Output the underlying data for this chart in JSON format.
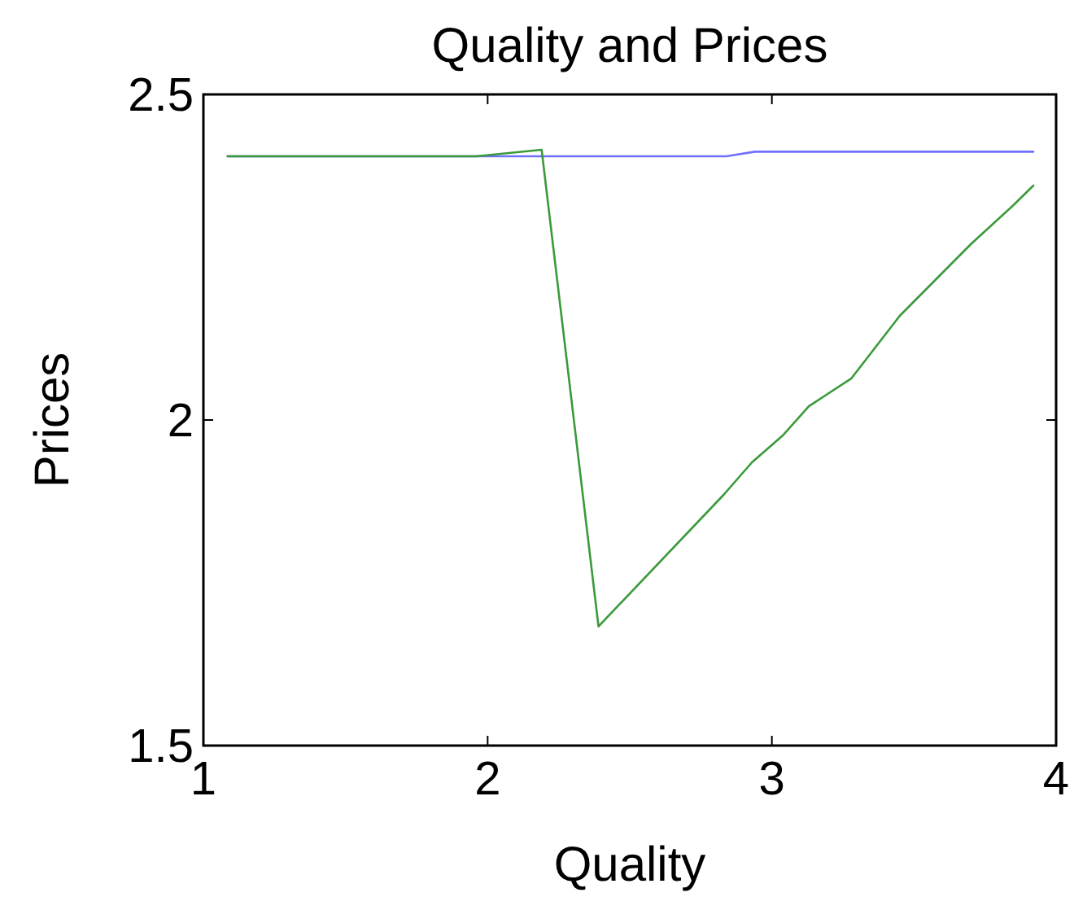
{
  "chart_data": {
    "type": "line",
    "title": "Quality and Prices",
    "xlabel": "Quality",
    "ylabel": "Prices",
    "xlim": [
      1,
      4
    ],
    "ylim": [
      1.5,
      2.5
    ],
    "xticks": [
      1,
      2,
      3,
      4
    ],
    "yticks": [
      1.5,
      2,
      2.5
    ],
    "grid": false,
    "series": [
      {
        "color": "#7070ff",
        "x": [
          1.085,
          2.19,
          2.84,
          2.94,
          3.92
        ],
        "values": [
          2.405,
          2.405,
          2.405,
          2.412,
          2.412
        ]
      },
      {
        "color": "#3a9a3a",
        "x": [
          1.085,
          1.96,
          2.19,
          2.39,
          2.83,
          2.93,
          3.04,
          3.13,
          3.28,
          3.45,
          3.7,
          3.85,
          3.92
        ],
        "values": [
          2.405,
          2.405,
          2.415,
          1.683,
          1.885,
          1.935,
          1.977,
          2.021,
          2.064,
          2.16,
          2.27,
          2.33,
          2.36
        ]
      }
    ]
  }
}
